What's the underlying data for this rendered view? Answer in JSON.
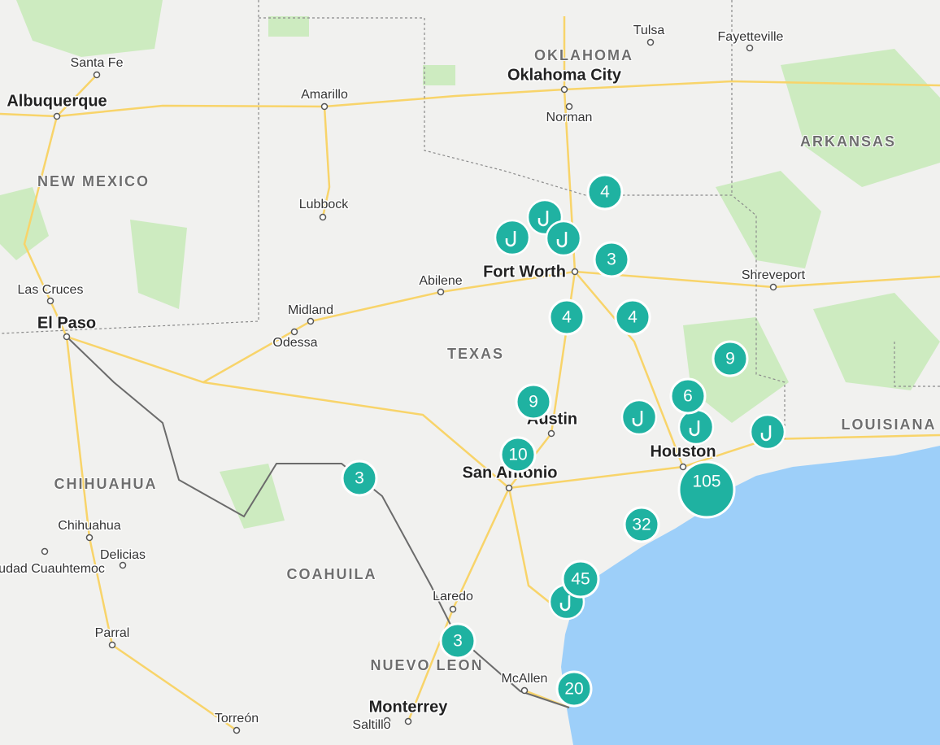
{
  "places": [
    {
      "label": "Santa Fe"
    },
    {
      "label": "Albuquerque"
    },
    {
      "label": "Amarillo"
    },
    {
      "label": "Tulsa"
    },
    {
      "label": "Fayetteville"
    },
    {
      "label": "Oklahoma City"
    },
    {
      "label": "Norman"
    },
    {
      "label": "Lubbock"
    },
    {
      "label": "Fort Worth"
    },
    {
      "label": "Abilene"
    },
    {
      "label": "Shreveport"
    },
    {
      "label": "Las Cruces"
    },
    {
      "label": "El Paso"
    },
    {
      "label": "Midland"
    },
    {
      "label": "Odessa"
    },
    {
      "label": "Austin"
    },
    {
      "label": "Houston"
    },
    {
      "label": "San Antonio"
    },
    {
      "label": "Chihuahua"
    },
    {
      "label": "Delicias"
    },
    {
      "label": "Ciudad Cuauhtemoc"
    },
    {
      "label": "Laredo"
    },
    {
      "label": "Parral"
    },
    {
      "label": "McAllen"
    },
    {
      "label": "Monterrey"
    },
    {
      "label": "Torreón"
    },
    {
      "label": "Saltillo"
    }
  ],
  "regions": [
    "OKLAHOMA",
    "ARKANSAS",
    "NEW MEXICO",
    "TEXAS",
    "LOUISIANA",
    "CHIHUAHUA",
    "COAHUILA",
    "NUEVO LEON"
  ],
  "clusters": [
    {
      "count": 4
    },
    {
      "count": 3
    },
    {
      "count": 4
    },
    {
      "count": 4
    },
    {
      "count": 9
    },
    {
      "count": 6
    },
    {
      "count": 9
    },
    {
      "count": 10
    },
    {
      "count": 3
    },
    {
      "count": 105
    },
    {
      "count": 32
    },
    {
      "count": 45
    },
    {
      "count": 3
    },
    {
      "count": 20
    }
  ]
}
